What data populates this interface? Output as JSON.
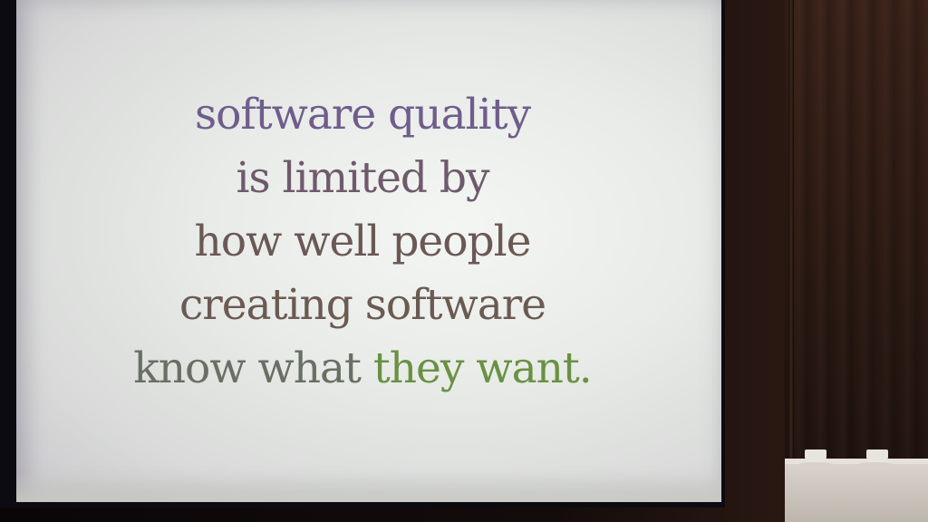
{
  "slide": {
    "lines": [
      "software quality",
      "is limited by",
      "how well people",
      "creating software"
    ],
    "last_line_start": "know what ",
    "last_line_end": "they want."
  },
  "colors": {
    "line1": "#6f5d8c",
    "line2": "#6e5a6c",
    "line3": "#6b5855",
    "line4": "#6b5a52",
    "line5_start": "#687063",
    "line5_end": "#6a9143"
  }
}
